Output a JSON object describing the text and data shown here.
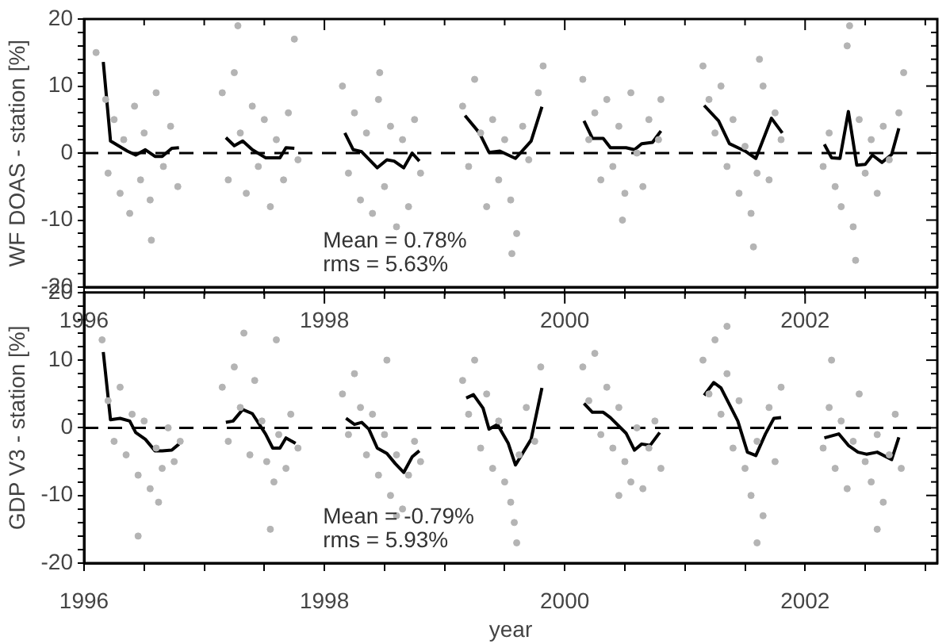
{
  "chart_data": [
    {
      "type": "scatter",
      "ylabel": "WF DOAS - station [%]",
      "annotations": [
        "Mean = 0.78%",
        "rms = 5.63%"
      ],
      "xlim": [
        1996,
        2003.1
      ],
      "xticks": [
        1996,
        {
          "value": 1996.5,
          "label": null
        },
        {
          "value": 1997,
          "label": null
        },
        {
          "value": 1997.5,
          "label": null
        },
        1998,
        {
          "value": 1998.5,
          "label": null
        },
        {
          "value": 1999,
          "label": null
        },
        {
          "value": 1999.5,
          "label": null
        },
        2000,
        {
          "value": 2000.5,
          "label": null
        },
        {
          "value": 2001,
          "label": null
        },
        {
          "value": 2001.5,
          "label": null
        },
        2002,
        {
          "value": 2002.5,
          "label": null
        },
        {
          "value": 2003,
          "label": null
        }
      ],
      "ylim": [
        -20,
        20
      ],
      "yticks": [
        -20,
        {
          "value": -18,
          "label": null
        },
        {
          "value": -16,
          "label": null
        },
        {
          "value": -14,
          "label": null
        },
        {
          "value": -12,
          "label": null
        },
        -10,
        {
          "value": -8,
          "label": null
        },
        {
          "value": -6,
          "label": null
        },
        {
          "value": -4,
          "label": null
        },
        {
          "value": -2,
          "label": null
        },
        0,
        {
          "value": 2,
          "label": null
        },
        {
          "value": 4,
          "label": null
        },
        {
          "value": 6,
          "label": null
        },
        {
          "value": 8,
          "label": null
        },
        10,
        {
          "value": 12,
          "label": null
        },
        {
          "value": 14,
          "label": null
        },
        {
          "value": 16,
          "label": null
        },
        {
          "value": 18,
          "label": null
        },
        20
      ],
      "grid": false,
      "legend": false,
      "ref_lines": [
        {
          "axis": "y",
          "value": 0,
          "color": "#000000",
          "line_style": "dashed"
        }
      ],
      "series": [
        {
          "type": "scatter",
          "color": "#b4b4b4",
          "marker": "circle",
          "x": [
            1996.18,
            1996.2,
            1996.25,
            1996.3,
            1996.33,
            1996.38,
            1996.42,
            1996.47,
            1996.5,
            1996.55,
            1996.6,
            1996.66,
            1996.72,
            1996.78,
            1996.1,
            1996.56,
            1997.15,
            1997.2,
            1997.25,
            1997.3,
            1997.35,
            1997.4,
            1997.45,
            1997.5,
            1997.55,
            1997.6,
            1997.66,
            1997.7,
            1997.78,
            1997.28,
            1997.75,
            1998.15,
            1998.2,
            1998.25,
            1998.3,
            1998.35,
            1998.4,
            1998.45,
            1998.5,
            1998.55,
            1998.6,
            1998.65,
            1998.7,
            1998.75,
            1998.8,
            1998.46,
            1999.15,
            1999.2,
            1999.25,
            1999.3,
            1999.35,
            1999.4,
            1999.45,
            1999.5,
            1999.55,
            1999.6,
            1999.65,
            1999.7,
            1999.78,
            1999.82,
            1999.56,
            2000.15,
            2000.2,
            2000.25,
            2000.3,
            2000.35,
            2000.4,
            2000.45,
            2000.5,
            2000.55,
            2000.6,
            2000.65,
            2000.7,
            2000.78,
            2000.8,
            2000.48,
            2001.15,
            2001.2,
            2001.25,
            2001.3,
            2001.35,
            2001.4,
            2001.45,
            2001.5,
            2001.55,
            2001.6,
            2001.65,
            2001.7,
            2001.75,
            2001.8,
            2001.57,
            2001.62,
            2002.15,
            2002.2,
            2002.25,
            2002.3,
            2002.35,
            2002.37,
            2002.4,
            2002.45,
            2002.5,
            2002.55,
            2002.6,
            2002.65,
            2002.7,
            2002.78,
            2002.82,
            2002.42
          ],
          "values": [
            8,
            -3,
            5,
            -6,
            2,
            -9,
            7,
            -4,
            3,
            -7,
            9,
            -2,
            4,
            -5,
            15,
            -13,
            9,
            -4,
            12,
            3,
            -6,
            7,
            -2,
            5,
            -8,
            2,
            -4,
            6,
            -1,
            19,
            17,
            10,
            -3,
            6,
            -7,
            3,
            -9,
            8,
            -5,
            4,
            -11,
            2,
            -8,
            5,
            -3,
            12,
            7,
            -2,
            11,
            3,
            -8,
            5,
            -4,
            2,
            -7,
            -12,
            4,
            -1,
            9,
            13,
            -15,
            11,
            2,
            6,
            -4,
            8,
            -2,
            4,
            -6,
            9,
            0,
            -5,
            5,
            2,
            8,
            -10,
            13,
            8,
            3,
            10,
            -2,
            5,
            -6,
            1,
            -9,
            -3,
            10,
            -4,
            6,
            2,
            -14,
            14,
            -2,
            3,
            -5,
            -8,
            16,
            19,
            -11,
            5,
            -3,
            2,
            -6,
            4,
            -1,
            6,
            12,
            -16
          ]
        },
        {
          "type": "line",
          "color": "#000000",
          "marker": "none",
          "x": [
            1996.16,
            1996.22,
            1996.36,
            1996.43,
            1996.51,
            1996.59,
            1996.65,
            1996.73,
            1996.79,
            1997.0,
            1997.18,
            1997.25,
            1997.32,
            1997.4,
            1997.51,
            1997.63,
            1997.68,
            1997.75,
            1998.0,
            1998.17,
            1998.24,
            1998.31,
            1998.44,
            1998.52,
            1998.58,
            1998.66,
            1998.73,
            1998.79,
            1999.0,
            1999.17,
            1999.29,
            1999.37,
            1999.46,
            1999.59,
            1999.72,
            1999.81,
            2000.0,
            2000.16,
            2000.23,
            2000.32,
            2000.38,
            2000.51,
            2000.58,
            2000.64,
            2000.73,
            2000.8,
            2001.0,
            2001.16,
            2001.28,
            2001.37,
            2001.5,
            2001.59,
            2001.72,
            2001.81,
            2002.0,
            2002.16,
            2002.22,
            2002.29,
            2002.36,
            2002.43,
            2002.5,
            2002.56,
            2002.64,
            2002.72,
            2002.78
          ],
          "values": [
            13.6,
            1.8,
            0.3,
            -0.3,
            0.5,
            -0.5,
            -0.5,
            0.7,
            0.8,
            null,
            2.3,
            1.1,
            1.8,
            0.5,
            -0.7,
            -0.7,
            0.8,
            0.7,
            null,
            3.0,
            0.5,
            0.2,
            -2.2,
            -1.0,
            -1.2,
            -2.2,
            0.0,
            -1.2,
            null,
            5.6,
            3.0,
            0.1,
            0.3,
            -0.8,
            1.8,
            6.9,
            null,
            4.8,
            2.2,
            2.2,
            0.8,
            0.8,
            0.5,
            1.4,
            1.6,
            3.3,
            null,
            7.1,
            4.8,
            1.4,
            0.3,
            -0.8,
            5.2,
            3.0,
            null,
            1.3,
            -0.7,
            -0.8,
            6.2,
            -1.8,
            -1.7,
            -0.3,
            -1.4,
            -0.2,
            3.7
          ]
        }
      ]
    },
    {
      "type": "scatter",
      "xlabel": "year",
      "ylabel": "GDP V3 - station [%]",
      "annotations": [
        "Mean = -0.79%",
        "rms = 5.93%"
      ],
      "xlim": [
        1996,
        2003.1
      ],
      "xticks": [
        1996,
        {
          "value": 1996.5,
          "label": null
        },
        {
          "value": 1997,
          "label": null
        },
        {
          "value": 1997.5,
          "label": null
        },
        1998,
        {
          "value": 1998.5,
          "label": null
        },
        {
          "value": 1999,
          "label": null
        },
        {
          "value": 1999.5,
          "label": null
        },
        2000,
        {
          "value": 2000.5,
          "label": null
        },
        {
          "value": 2001,
          "label": null
        },
        {
          "value": 2001.5,
          "label": null
        },
        2002,
        {
          "value": 2002.5,
          "label": null
        },
        {
          "value": 2003,
          "label": null
        }
      ],
      "ylim": [
        -20,
        20
      ],
      "yticks": [
        -20,
        {
          "value": -18,
          "label": null
        },
        {
          "value": -16,
          "label": null
        },
        {
          "value": -14,
          "label": null
        },
        {
          "value": -12,
          "label": null
        },
        -10,
        {
          "value": -8,
          "label": null
        },
        {
          "value": -6,
          "label": null
        },
        {
          "value": -4,
          "label": null
        },
        {
          "value": -2,
          "label": null
        },
        0,
        {
          "value": 2,
          "label": null
        },
        {
          "value": 4,
          "label": null
        },
        {
          "value": 6,
          "label": null
        },
        {
          "value": 8,
          "label": null
        },
        10,
        {
          "value": 12,
          "label": null
        },
        {
          "value": 14,
          "label": null
        },
        {
          "value": 16,
          "label": null
        },
        {
          "value": 18,
          "label": null
        },
        20
      ],
      "grid": false,
      "legend": false,
      "ref_lines": [
        {
          "axis": "y",
          "value": 0,
          "color": "#000000",
          "line_style": "dashed"
        }
      ],
      "series": [
        {
          "type": "scatter",
          "color": "#b4b4b4",
          "marker": "circle",
          "x": [
            1996.15,
            1996.2,
            1996.25,
            1996.3,
            1996.35,
            1996.4,
            1996.45,
            1996.5,
            1996.55,
            1996.6,
            1996.65,
            1996.7,
            1996.75,
            1996.8,
            1996.45,
            1996.62,
            1997.15,
            1997.2,
            1997.25,
            1997.3,
            1997.33,
            1997.38,
            1997.42,
            1997.48,
            1997.52,
            1997.58,
            1997.62,
            1997.68,
            1997.72,
            1997.78,
            1997.55,
            1997.6,
            1998.15,
            1998.2,
            1998.25,
            1998.3,
            1998.35,
            1998.4,
            1998.45,
            1998.5,
            1998.55,
            1998.6,
            1998.65,
            1998.7,
            1998.75,
            1998.8,
            1998.52,
            1998.6,
            1999.15,
            1999.2,
            1999.25,
            1999.3,
            1999.35,
            1999.4,
            1999.45,
            1999.5,
            1999.55,
            1999.58,
            1999.62,
            1999.68,
            1999.75,
            1999.8,
            1999.6,
            2000.15,
            2000.2,
            2000.25,
            2000.3,
            2000.35,
            2000.4,
            2000.45,
            2000.5,
            2000.55,
            2000.6,
            2000.65,
            2000.7,
            2000.75,
            2000.8,
            2000.45,
            2001.15,
            2001.2,
            2001.25,
            2001.3,
            2001.35,
            2001.4,
            2001.45,
            2001.5,
            2001.55,
            2001.6,
            2001.65,
            2001.7,
            2001.75,
            2001.8,
            2001.35,
            2001.6,
            2002.15,
            2002.2,
            2002.25,
            2002.3,
            2002.35,
            2002.4,
            2002.45,
            2002.5,
            2002.55,
            2002.6,
            2002.65,
            2002.7,
            2002.75,
            2002.8,
            2002.22,
            2002.6
          ],
          "values": [
            13,
            4,
            -2,
            6,
            -4,
            2,
            -7,
            1,
            -9,
            -3,
            -6,
            0,
            -5,
            -2,
            -16,
            -11,
            6,
            -2,
            9,
            3,
            14,
            -4,
            7,
            1,
            -5,
            -8,
            -1,
            -6,
            2,
            -3,
            -15,
            13,
            5,
            -1,
            8,
            3,
            -4,
            2,
            -7,
            -1,
            -10,
            -4,
            -12,
            -7,
            -2,
            -5,
            10,
            -13,
            7,
            2,
            10,
            -3,
            5,
            -6,
            1,
            -8,
            -11,
            -14,
            -4,
            3,
            -2,
            9,
            -17,
            9,
            4,
            11,
            -1,
            6,
            -3,
            3,
            -5,
            -8,
            0,
            -9,
            -3,
            1,
            -6,
            -10,
            10,
            5,
            13,
            2,
            8,
            -3,
            4,
            -6,
            -10,
            -2,
            -13,
            3,
            -5,
            6,
            15,
            -17,
            -3,
            3,
            -6,
            1,
            -9,
            -2,
            5,
            -5,
            -8,
            -1,
            -11,
            -4,
            2,
            -6,
            10,
            -15
          ]
        },
        {
          "type": "line",
          "color": "#000000",
          "marker": "none",
          "x": [
            1996.16,
            1996.22,
            1996.3,
            1996.38,
            1996.43,
            1996.51,
            1996.59,
            1996.65,
            1996.73,
            1996.79,
            1997.0,
            1997.18,
            1997.24,
            1997.32,
            1997.4,
            1997.51,
            1997.57,
            1997.63,
            1997.68,
            1997.76,
            1998.0,
            1998.18,
            1998.25,
            1998.31,
            1998.37,
            1998.44,
            1998.52,
            1998.59,
            1998.66,
            1998.73,
            1998.79,
            1999.0,
            1999.18,
            1999.24,
            1999.32,
            1999.37,
            1999.44,
            1999.53,
            1999.59,
            1999.72,
            1999.81,
            2000.0,
            2000.16,
            2000.23,
            2000.32,
            2000.38,
            2000.51,
            2000.58,
            2000.64,
            2000.71,
            2000.79,
            2001.0,
            2001.16,
            2001.24,
            2001.3,
            2001.44,
            2001.52,
            2001.59,
            2001.67,
            2001.74,
            2001.8,
            2002.0,
            2002.16,
            2002.28,
            2002.36,
            2002.44,
            2002.51,
            2002.6,
            2002.72,
            2002.78
          ],
          "values": [
            11.2,
            1.2,
            1.4,
            1.0,
            -0.7,
            -1.7,
            -3.4,
            -3.4,
            -3.3,
            -2.4,
            null,
            0.8,
            1.0,
            2.7,
            2.1,
            -0.9,
            -3.0,
            -3.0,
            -1.5,
            -2.3,
            null,
            1.4,
            0.5,
            0.8,
            -0.2,
            -3.0,
            -3.8,
            -5.3,
            -6.6,
            -4.3,
            -3.4,
            null,
            4.4,
            4.9,
            2.9,
            -0.2,
            0.5,
            -2.3,
            -5.5,
            -1.7,
            5.9,
            null,
            3.6,
            2.3,
            2.3,
            1.5,
            -0.8,
            -3.3,
            -2.4,
            -2.6,
            -0.7,
            null,
            4.8,
            6.7,
            5.9,
            1.0,
            -3.6,
            -4.1,
            -0.9,
            1.4,
            1.5,
            null,
            -1.5,
            -0.9,
            -2.6,
            -3.6,
            -3.9,
            -3.6,
            -4.7,
            -1.4
          ]
        }
      ]
    }
  ]
}
